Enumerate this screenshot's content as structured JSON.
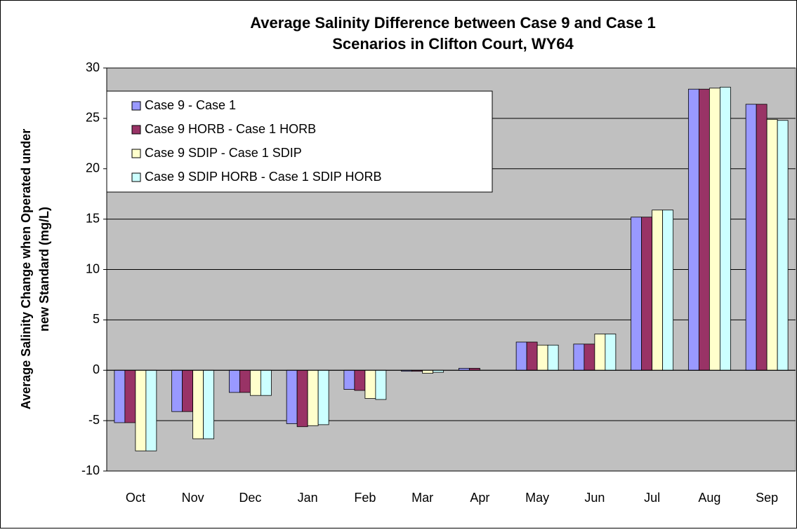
{
  "chart_data": {
    "type": "bar",
    "title": [
      "Average Salinity Difference between Case 9 and Case 1",
      "Scenarios in Clifton Court, WY64"
    ],
    "y_label": [
      "Average Salinity Change when Operated under",
      "new Standard (mg/L)"
    ],
    "categories": [
      "Oct",
      "Nov",
      "Dec",
      "Jan",
      "Feb",
      "Mar",
      "Apr",
      "May",
      "Jun",
      "Jul",
      "Aug",
      "Sep"
    ],
    "series": [
      {
        "name": "Case 9 - Case 1",
        "color": "#9999ff",
        "values": [
          -5.2,
          -4.1,
          -2.2,
          -5.3,
          -1.9,
          -0.1,
          0.2,
          2.8,
          2.6,
          15.2,
          27.9,
          26.4
        ]
      },
      {
        "name": "Case 9 HORB - Case 1 HORB",
        "color": "#993366",
        "values": [
          -5.2,
          -4.1,
          -2.2,
          -5.6,
          -2.0,
          -0.1,
          0.2,
          2.8,
          2.6,
          15.2,
          27.9,
          26.4
        ]
      },
      {
        "name": "Case 9 SDIP - Case 1 SDIP",
        "color": "#ffffcc",
        "values": [
          -8.0,
          -6.8,
          -2.5,
          -5.5,
          -2.8,
          -0.3,
          0,
          2.5,
          3.6,
          15.9,
          28.0,
          24.9
        ]
      },
      {
        "name": "Case 9 SDIP HORB - Case 1 SDIP HORB",
        "color": "#ccffff",
        "values": [
          -8.0,
          -6.8,
          -2.5,
          -5.4,
          -2.9,
          -0.2,
          0,
          2.5,
          3.6,
          15.9,
          28.1,
          24.8
        ]
      }
    ],
    "ylim": [
      -10,
      30
    ],
    "yticks": [
      -10,
      -5,
      0,
      5,
      10,
      15,
      20,
      25,
      30
    ],
    "grid": true,
    "legend": "upper-left"
  }
}
